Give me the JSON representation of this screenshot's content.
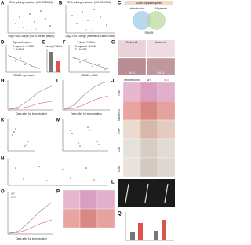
{
  "panels": {
    "a": {
      "label": "A",
      "title": "RNA splicing regulators (GO: 0043484)",
      "x_label": "Log2 Fold Change (RA vs. Health people)",
      "y_label": "-Log10 P value"
    },
    "b": {
      "label": "B",
      "title": "RNA splicing regulators (GO: 0043484)",
      "x_label": "Log2 Fold Change (arthritis vs. control mice)",
      "y_label": "-Log10 P value"
    },
    "c": {
      "label": "C",
      "title": "Down-regulated genes",
      "left": "Infantile mice",
      "right": "RA patients",
      "center": "RBM25"
    },
    "d": {
      "label": "D",
      "title": "Synovial tissues",
      "stat1": "R squared =0.1760",
      "stat2": "P =0.0496",
      "x_label": "RBM25 expression"
    },
    "e": {
      "label": "E",
      "title": "Primary PBMCs"
    },
    "f": {
      "label": "F",
      "title": "Primary PBMCs",
      "stat1": "R squared =0.2915",
      "stat2": "P =0.0072",
      "x_label": "RBM25 mRNA"
    },
    "g": {
      "label": "G",
      "images": [
        "Control #1",
        "Control #2",
        "RA #1",
        "RA #2"
      ]
    },
    "h": {
      "label": "H",
      "x_label": "Days after 1st immunization"
    },
    "i": {
      "label": "I",
      "x_label": "Days after 1st immunization"
    },
    "j": {
      "label": "J",
      "columns": [
        "Unimmunized",
        "WT",
        "cKO"
      ],
      "rows": [
        "H&E",
        "Safranin O",
        "TRAP",
        "CD3",
        "CD68"
      ]
    },
    "k": {
      "label": "K"
    },
    "l": {
      "label": "L"
    },
    "m": {
      "label": "M"
    },
    "n": {
      "label": "N"
    },
    "o": {
      "label": "O",
      "x_label": "Days after 1st immunization"
    },
    "p": {
      "label": "P"
    },
    "q": {
      "label": "Q"
    },
    "legend": [
      "WT",
      "cKO"
    ]
  }
}
